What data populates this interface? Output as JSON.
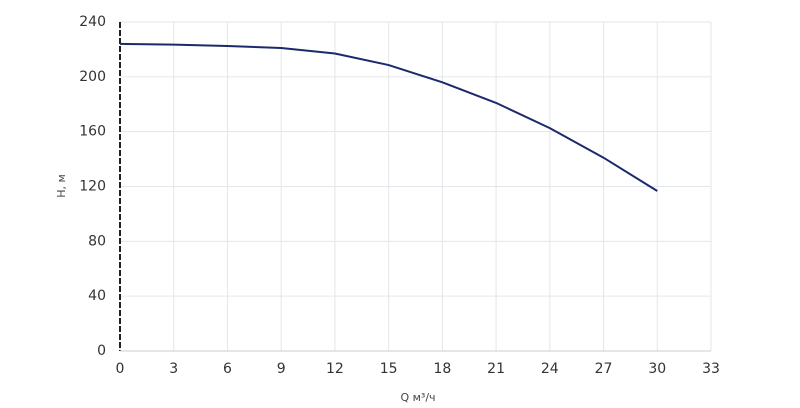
{
  "chart_data": {
    "type": "line",
    "x_label": "Q м³/ч",
    "y_label": "H, м",
    "x": [
      0,
      3,
      6,
      9,
      12,
      15,
      18,
      21,
      24,
      27,
      30
    ],
    "series": [
      {
        "name": "H",
        "color": "#1b2a6b",
        "values": [
          224,
          223.5,
          222.5,
          221,
          217,
          208.6,
          196,
          181,
          162.6,
          141,
          116.7
        ]
      }
    ],
    "xlim": [
      0,
      33
    ],
    "xticks": [
      0,
      3,
      6,
      9,
      12,
      15,
      18,
      21,
      24,
      27,
      30,
      33
    ],
    "ylim": [
      0,
      240
    ],
    "yticks": [
      0,
      40,
      80,
      120,
      160,
      200,
      240
    ],
    "grid": true
  }
}
